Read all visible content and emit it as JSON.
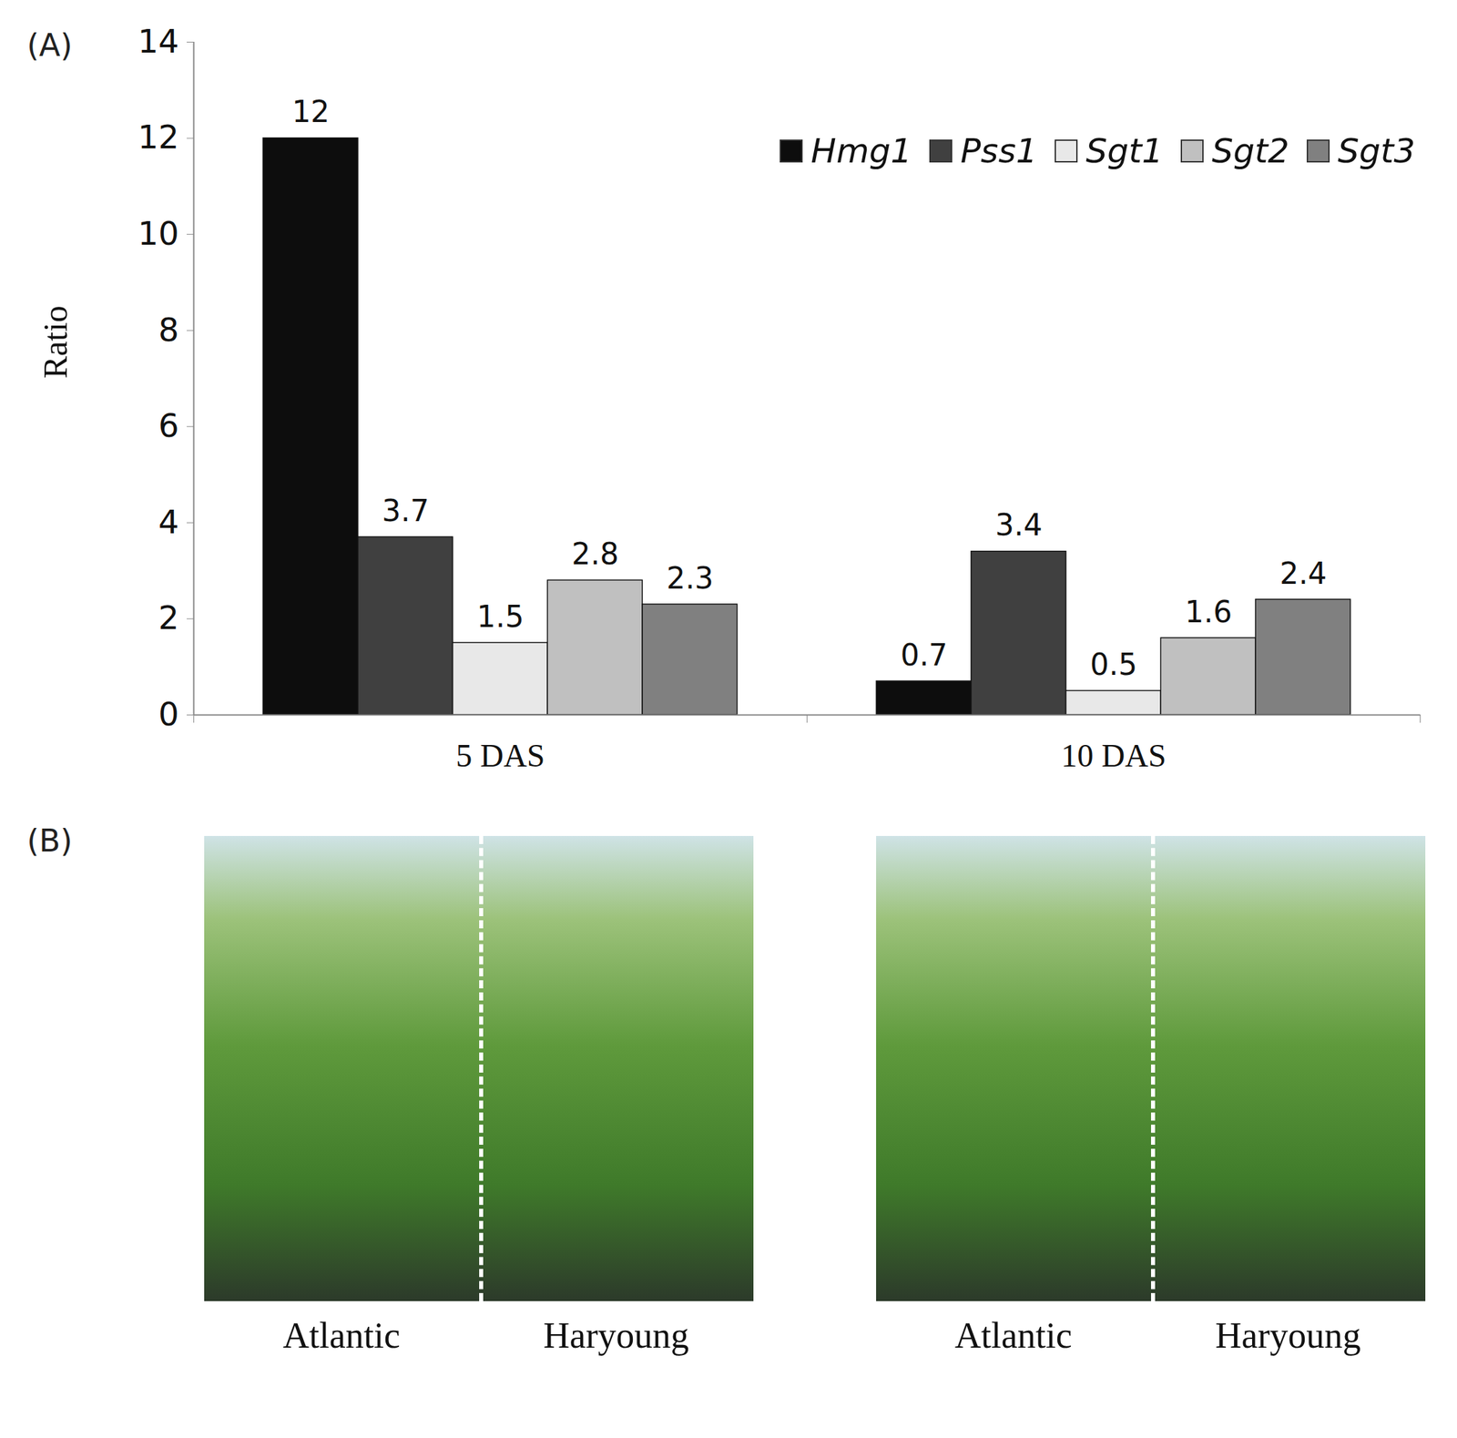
{
  "chart_data": {
    "type": "bar",
    "panel_label": "(A)",
    "y_label": "Ratio",
    "categories": [
      "5 DAS",
      "10 DAS"
    ],
    "series": [
      {
        "name": "Hmg1",
        "color": "#0d0d0d",
        "values": [
          12,
          0.7
        ]
      },
      {
        "name": "Pss1",
        "color": "#404040",
        "values": [
          3.7,
          3.4
        ]
      },
      {
        "name": "Sgt1",
        "color": "#e8e8e8",
        "values": [
          1.5,
          0.5
        ]
      },
      {
        "name": "Sgt2",
        "color": "#c0c0c0",
        "values": [
          2.8,
          1.6
        ]
      },
      {
        "name": "Sgt3",
        "color": "#808080",
        "values": [
          2.3,
          2.4
        ]
      }
    ],
    "ylim": [
      0,
      14
    ],
    "yticks": [
      0,
      2,
      4,
      6,
      8,
      10,
      12,
      14
    ],
    "grid": false,
    "legend": "top-right",
    "data_labels": true
  },
  "photos": {
    "panel_label": "(B)",
    "panels": [
      {
        "labels": [
          "Atlantic",
          "Haryoung"
        ]
      },
      {
        "labels": [
          "Atlantic",
          "Haryoung"
        ]
      }
    ]
  }
}
